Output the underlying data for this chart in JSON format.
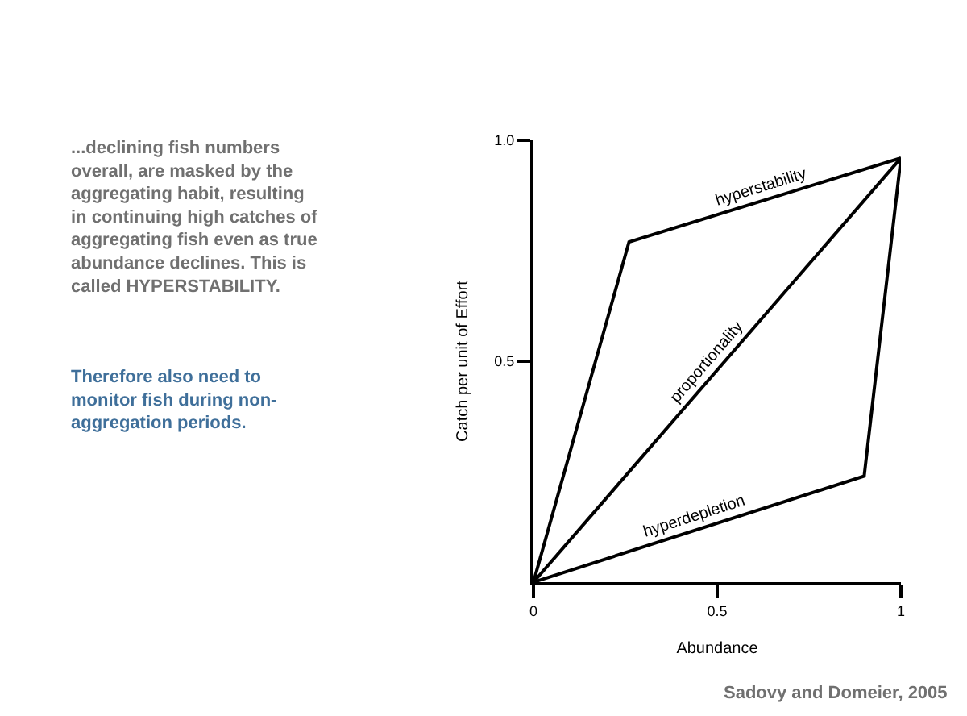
{
  "chart_data": {
    "type": "line",
    "xlabel": "Abundance",
    "ylabel": "Catch per unit of Effort",
    "series": [
      {
        "name": "hyperstability",
        "color": "#000000",
        "x": [
          0,
          0.26,
          1
        ],
        "values": [
          0,
          0.77,
          0.96
        ]
      },
      {
        "name": "proportionality",
        "color": "#000000",
        "x": [
          0,
          1
        ],
        "values": [
          0,
          0.96
        ]
      },
      {
        "name": "hyperdepletion",
        "color": "#000000",
        "x": [
          0,
          0.9,
          1
        ],
        "values": [
          0,
          0.24,
          0.96
        ]
      }
    ],
    "xlim": [
      0,
      1
    ],
    "ylim": [
      0,
      1
    ],
    "xticks": [
      0,
      0.5,
      1
    ],
    "yticks": [
      0.5,
      {
        "value": 1,
        "label": "1.0"
      }
    ],
    "grid": false,
    "legend": false,
    "marker": "none",
    "line_style": "solid",
    "annotations": [
      "...declining fish numbers overall, are masked by the aggregating habit, resulting in continuing high catches of aggregating fish even as true abundance declines. This is called HYPERSTABILITY.",
      "Therefore also need to monitor fish during non-aggregation periods.",
      "Sadovy and Domeier, 2005"
    ]
  }
}
